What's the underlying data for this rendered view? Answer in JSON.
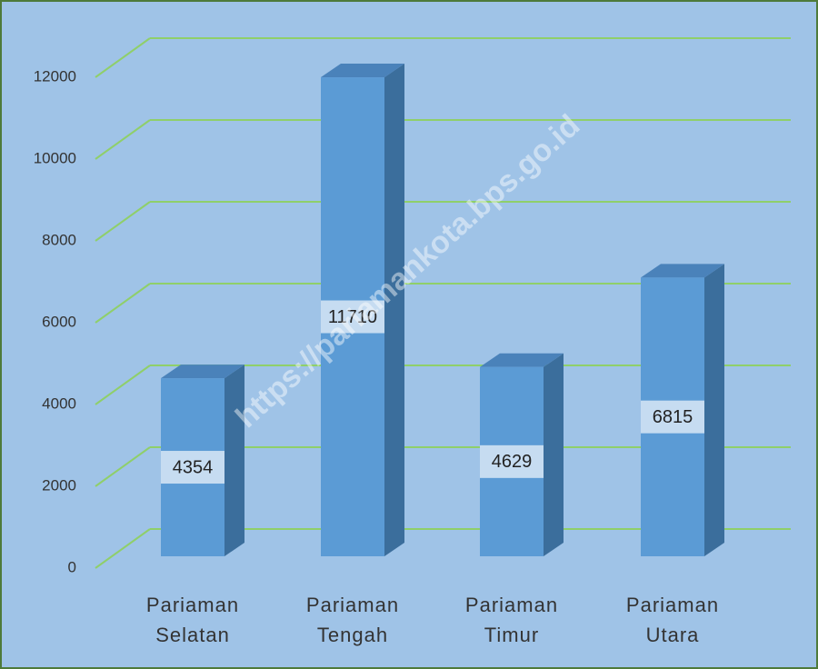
{
  "chart_data": {
    "type": "bar3d",
    "categories": [
      [
        "Pariaman",
        "Selatan"
      ],
      [
        "Pariaman",
        "Tengah"
      ],
      [
        "Pariaman",
        "Timur"
      ],
      [
        "Pariaman",
        "Utara"
      ]
    ],
    "values": [
      4354,
      11710,
      4629,
      6815
    ],
    "color": "#5b9bd5",
    "ylim": [
      0,
      13000
    ],
    "yticks": [
      0,
      2000,
      4000,
      6000,
      8000,
      10000,
      12000
    ],
    "grid": true,
    "watermark": "https://pariamankota.bps.go.id"
  }
}
